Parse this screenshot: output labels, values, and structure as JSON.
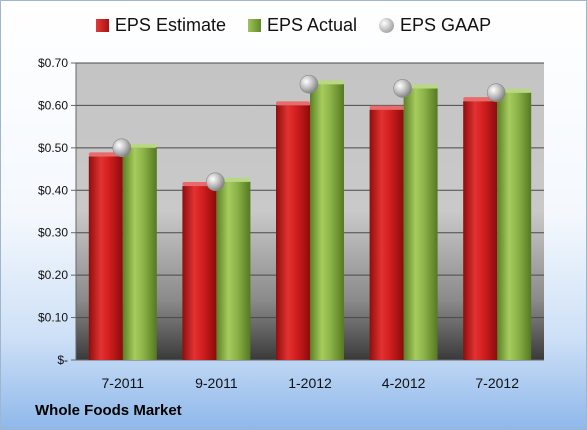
{
  "company": "Whole Foods Market",
  "chart_data": {
    "type": "bar",
    "categories": [
      "7-2011",
      "9-2011",
      "1-2012",
      "4-2012",
      "7-2012"
    ],
    "series": [
      {
        "name": "EPS Estimate",
        "values": [
          0.48,
          0.41,
          0.6,
          0.59,
          0.61
        ],
        "color": "#c81e1e",
        "mark": "bar"
      },
      {
        "name": "EPS Actual",
        "values": [
          0.5,
          0.42,
          0.65,
          0.64,
          0.63
        ],
        "color": "#7ea83a",
        "mark": "bar"
      },
      {
        "name": "EPS GAAP",
        "values": [
          0.5,
          0.42,
          0.65,
          0.64,
          0.63
        ],
        "color": "#b4b4b4",
        "mark": "marker"
      }
    ],
    "y_ticks": [
      "$-",
      "$0.10",
      "$0.20",
      "$0.30",
      "$0.40",
      "$0.50",
      "$0.60",
      "$0.70"
    ],
    "ylim": [
      0,
      0.7
    ],
    "grid": true,
    "legend": "top"
  }
}
